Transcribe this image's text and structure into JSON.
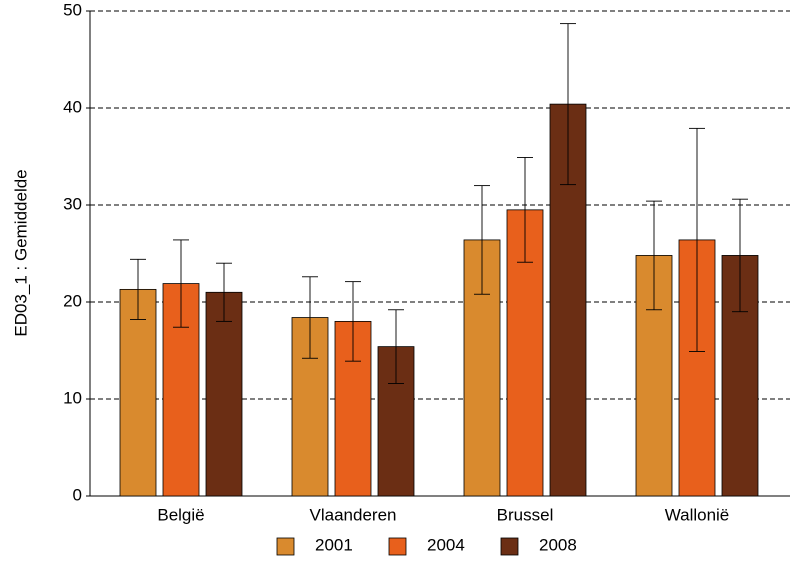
{
  "chart_data": {
    "type": "bar",
    "y_label": "ED03_1 : Gemiddelde",
    "categories": [
      "België",
      "Vlaanderen",
      "Brussel",
      "Wallonië"
    ],
    "series": [
      {
        "name": "2001",
        "color": "#d98a2e",
        "values": [
          21.3,
          18.4,
          26.4,
          24.8
        ],
        "errors": [
          3.1,
          4.2,
          5.6,
          5.6
        ]
      },
      {
        "name": "2004",
        "color": "#e8601c",
        "values": [
          21.9,
          18.0,
          29.5,
          26.4
        ],
        "errors": [
          4.5,
          4.1,
          5.4,
          11.5
        ]
      },
      {
        "name": "2008",
        "color": "#6b2e14",
        "values": [
          21.0,
          15.4,
          40.4,
          24.8
        ],
        "errors": [
          3.0,
          3.8,
          8.3,
          5.8
        ]
      }
    ],
    "ylim": [
      0,
      50
    ],
    "yticks": [
      0,
      10,
      20,
      30,
      40,
      50
    ],
    "grid": true
  }
}
